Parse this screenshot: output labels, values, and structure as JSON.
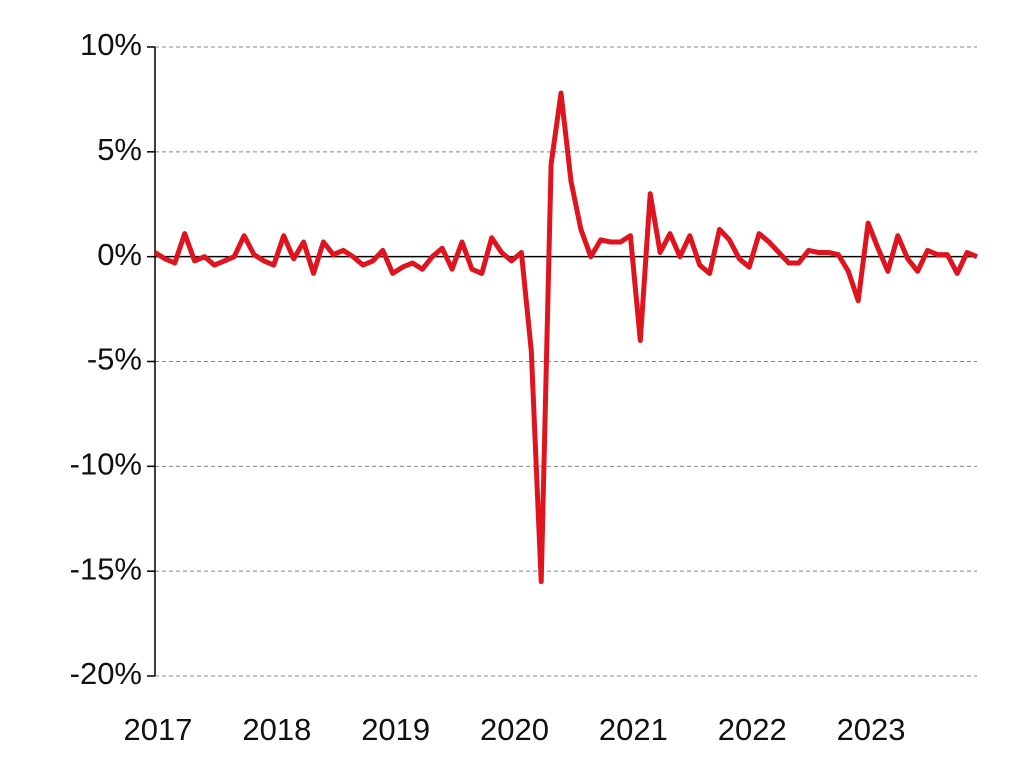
{
  "chart_data": {
    "type": "line",
    "categories": [
      "2017",
      null,
      null,
      null,
      null,
      null,
      null,
      null,
      null,
      null,
      null,
      null,
      "2018",
      null,
      null,
      null,
      null,
      null,
      null,
      null,
      null,
      null,
      null,
      null,
      "2019",
      null,
      null,
      null,
      null,
      null,
      null,
      null,
      null,
      null,
      null,
      null,
      "2020",
      null,
      null,
      null,
      null,
      null,
      null,
      null,
      null,
      null,
      null,
      null,
      "2021",
      null,
      null,
      null,
      null,
      null,
      null,
      null,
      null,
      null,
      null,
      null,
      "2022",
      null,
      null,
      null,
      null,
      null,
      null,
      null,
      null,
      null,
      null,
      null,
      "2023",
      null,
      null,
      null,
      null,
      null,
      null,
      null,
      null,
      null,
      null,
      null
    ],
    "values": [
      0.2,
      -0.1,
      -0.3,
      1.1,
      -0.2,
      0.0,
      -0.4,
      -0.2,
      0.0,
      1.0,
      0.1,
      -0.2,
      -0.4,
      1.0,
      -0.1,
      0.7,
      -0.8,
      0.7,
      0.1,
      0.3,
      0.0,
      -0.4,
      -0.2,
      0.3,
      -0.8,
      -0.5,
      -0.3,
      -0.6,
      0.0,
      0.4,
      -0.6,
      0.7,
      -0.6,
      -0.8,
      0.9,
      0.2,
      -0.2,
      0.2,
      -4.5,
      -15.5,
      4.4,
      7.8,
      3.6,
      1.3,
      0.0,
      0.8,
      0.7,
      0.7,
      1.0,
      -4.0,
      3.0,
      0.2,
      1.1,
      0.0,
      1.0,
      -0.4,
      -0.8,
      1.3,
      0.8,
      -0.1,
      -0.5,
      1.1,
      0.7,
      0.2,
      -0.3,
      -0.3,
      0.3,
      0.2,
      0.2,
      0.1,
      -0.7,
      -2.1,
      1.6,
      0.4,
      -0.7,
      1.0,
      -0.1,
      -0.7,
      0.3,
      0.1,
      0.1,
      -0.8,
      0.2,
      0.0
    ],
    "color": "#e0141e",
    "ylim": [
      -20,
      10
    ],
    "yticks": [
      {
        "value": 10,
        "label": "10%"
      },
      {
        "value": 5,
        "label": "5%"
      },
      {
        "value": 0,
        "label": "0%"
      },
      {
        "value": -5,
        "label": "-5%"
      },
      {
        "value": -10,
        "label": "-10%"
      },
      {
        "value": -15,
        "label": "-15%"
      },
      {
        "value": -20,
        "label": "-20%"
      }
    ],
    "grid": true
  }
}
